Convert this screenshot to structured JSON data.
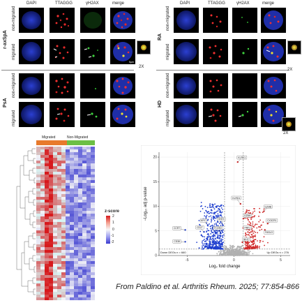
{
  "channels": [
    "DAPI",
    "TTAGGG",
    "γH2AX",
    "merge"
  ],
  "left_panel": {
    "groups": [
      {
        "label": "r-axSpA",
        "rows": [
          "non-migrated",
          "migrated"
        ]
      },
      {
        "label": "PsA",
        "rows": [
          "non-migrated",
          "migrated"
        ]
      }
    ],
    "scale_text": "5µm"
  },
  "right_panel": {
    "groups": [
      {
        "label": "RA",
        "rows": [
          "non-migrated",
          "migrated"
        ]
      },
      {
        "label": "HD",
        "rows": [
          "non-migrated",
          "migrated"
        ]
      }
    ]
  },
  "inset_label": "2X",
  "heatmap": {
    "group_labels": [
      "Migrated",
      "Non-Migrated"
    ],
    "group_colors": [
      "#e87a2c",
      "#6cbf45"
    ],
    "legend_title": "z-score",
    "legend_ticks": [
      "2",
      "1",
      "0",
      "-1",
      "-2"
    ]
  },
  "chart_data": {
    "type": "scatter",
    "xlabel": "Log₂ fold change",
    "ylabel": "−Log₁₀ adj p-value",
    "xlim": [
      -8,
      6
    ],
    "ylim": [
      0,
      21
    ],
    "xticks": [
      "-5",
      "0",
      "5"
    ],
    "yticks": [
      "0",
      "5",
      "10",
      "15",
      "20"
    ],
    "down_label": "Down DEGs n = 660",
    "up_label": "Up DEGs n = 276",
    "annotated_genes": [
      {
        "gene": "KLRK1",
        "x": 0.4,
        "y": 19.0,
        "side": "up"
      },
      {
        "gene": "KLRD1",
        "x": 0.7,
        "y": 10.5,
        "side": "up"
      },
      {
        "gene": "GZMB",
        "x": 3.2,
        "y": 9.0,
        "side": "up"
      },
      {
        "gene": "GZMK",
        "x": 1.0,
        "y": 7.5,
        "side": "up"
      },
      {
        "gene": "CX3CR1",
        "x": 3.6,
        "y": 6.5,
        "side": "up"
      },
      {
        "gene": "FASLG",
        "x": 3.3,
        "y": 5.2,
        "side": "up"
      },
      {
        "gene": "PRF1",
        "x": 1.0,
        "y": 5.6,
        "side": "up"
      },
      {
        "gene": "MYC",
        "x": -2.8,
        "y": 6.2,
        "side": "down"
      },
      {
        "gene": "HHEX",
        "x": -1.2,
        "y": 6.2,
        "side": "down"
      },
      {
        "gene": "CCR7",
        "x": -5.2,
        "y": 5.2,
        "side": "down"
      },
      {
        "gene": "CD27",
        "x": -3.2,
        "y": 4.8,
        "side": "down"
      },
      {
        "gene": "FCER2",
        "x": -1.4,
        "y": 4.5,
        "side": "down"
      },
      {
        "gene": "CD38",
        "x": -5.2,
        "y": 2.8,
        "side": "down"
      },
      {
        "gene": "NKG7",
        "x": 0.9,
        "y": 2.7,
        "side": "up"
      }
    ]
  },
  "citation": "From Paldino et al. Arthritis Rheum. 2025; 77:854-866"
}
